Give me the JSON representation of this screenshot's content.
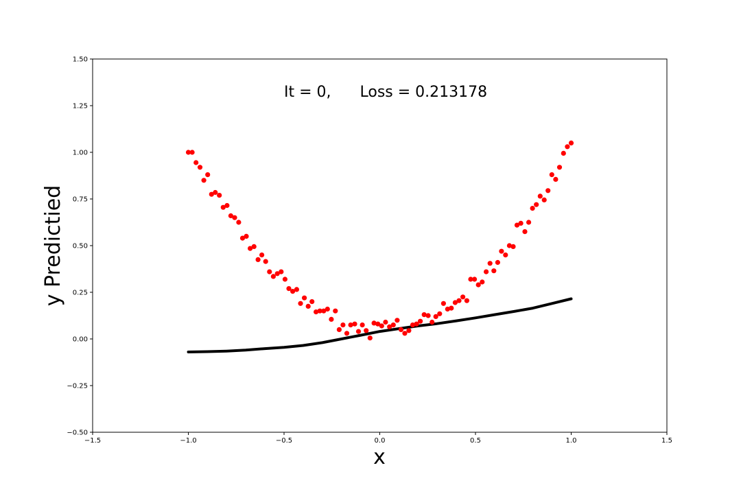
{
  "chart_data": {
    "type": "scatter",
    "annotation": "It = 0,      Loss = 0.213178",
    "xlabel": "x",
    "ylabel": "y Predictied",
    "xlim": [
      -1.5,
      1.5
    ],
    "ylim": [
      -0.5,
      1.5
    ],
    "xticks": [
      -1.5,
      -1.0,
      -0.5,
      0.0,
      0.5,
      1.0,
      1.5
    ],
    "xtick_labels": [
      "−1.5",
      "−1.0",
      "−0.5",
      "0.0",
      "0.5",
      "1.0",
      "1.5"
    ],
    "yticks": [
      -0.5,
      -0.25,
      0.0,
      0.25,
      0.5,
      0.75,
      1.0,
      1.25,
      1.5
    ],
    "ytick_labels": [
      "−0.50",
      "−0.25",
      "0.00",
      "0.25",
      "0.50",
      "0.75",
      "1.00",
      "1.25",
      "1.50"
    ],
    "grid": false,
    "series": [
      {
        "kind": "scatter",
        "color": "#ff0000",
        "x": [
          -1.0,
          -0.98,
          -0.96,
          -0.939,
          -0.919,
          -0.899,
          -0.879,
          -0.859,
          -0.838,
          -0.818,
          -0.798,
          -0.778,
          -0.758,
          -0.737,
          -0.717,
          -0.697,
          -0.677,
          -0.657,
          -0.636,
          -0.616,
          -0.596,
          -0.576,
          -0.556,
          -0.535,
          -0.515,
          -0.495,
          -0.475,
          -0.455,
          -0.434,
          -0.414,
          -0.394,
          -0.374,
          -0.354,
          -0.333,
          -0.313,
          -0.293,
          -0.273,
          -0.253,
          -0.232,
          -0.212,
          -0.192,
          -0.172,
          -0.152,
          -0.131,
          -0.111,
          -0.091,
          -0.071,
          -0.051,
          -0.03,
          -0.01,
          0.01,
          0.03,
          0.051,
          0.071,
          0.091,
          0.111,
          0.131,
          0.152,
          0.172,
          0.192,
          0.212,
          0.232,
          0.253,
          0.273,
          0.293,
          0.313,
          0.333,
          0.354,
          0.374,
          0.394,
          0.414,
          0.434,
          0.455,
          0.475,
          0.495,
          0.515,
          0.535,
          0.556,
          0.576,
          0.596,
          0.616,
          0.636,
          0.657,
          0.677,
          0.697,
          0.717,
          0.737,
          0.758,
          0.778,
          0.798,
          0.818,
          0.838,
          0.859,
          0.879,
          0.899,
          0.919,
          0.939,
          0.96,
          0.98,
          1.0
        ],
        "y": [
          1.0,
          1.0,
          0.945,
          0.92,
          0.85,
          0.88,
          0.775,
          0.785,
          0.77,
          0.705,
          0.715,
          0.66,
          0.65,
          0.625,
          0.54,
          0.55,
          0.485,
          0.495,
          0.425,
          0.45,
          0.415,
          0.36,
          0.335,
          0.35,
          0.36,
          0.32,
          0.27,
          0.255,
          0.265,
          0.19,
          0.22,
          0.175,
          0.2,
          0.145,
          0.15,
          0.15,
          0.16,
          0.105,
          0.15,
          0.05,
          0.075,
          0.03,
          0.075,
          0.08,
          0.04,
          0.075,
          0.045,
          0.005,
          0.085,
          0.08,
          0.07,
          0.09,
          0.065,
          0.075,
          0.1,
          0.05,
          0.03,
          0.045,
          0.075,
          0.08,
          0.095,
          0.13,
          0.125,
          0.09,
          0.12,
          0.135,
          0.19,
          0.16,
          0.165,
          0.195,
          0.205,
          0.225,
          0.205,
          0.32,
          0.32,
          0.29,
          0.305,
          0.36,
          0.405,
          0.365,
          0.41,
          0.47,
          0.45,
          0.5,
          0.495,
          0.61,
          0.62,
          0.575,
          0.625,
          0.7,
          0.72,
          0.765,
          0.745,
          0.795,
          0.88,
          0.855,
          0.92,
          0.995,
          1.03,
          1.05
        ]
      },
      {
        "kind": "line",
        "color": "#000000",
        "x": [
          -1.0,
          -0.9,
          -0.8,
          -0.7,
          -0.6,
          -0.5,
          -0.4,
          -0.3,
          -0.2,
          -0.1,
          0.0,
          0.1,
          0.2,
          0.3,
          0.4,
          0.5,
          0.6,
          0.7,
          0.8,
          0.9,
          1.0
        ],
        "y": [
          -0.07,
          -0.068,
          -0.065,
          -0.06,
          -0.052,
          -0.045,
          -0.035,
          -0.02,
          0.0,
          0.02,
          0.04,
          0.055,
          0.07,
          0.082,
          0.097,
          0.113,
          0.13,
          0.147,
          0.165,
          0.19,
          0.215
        ]
      }
    ]
  }
}
